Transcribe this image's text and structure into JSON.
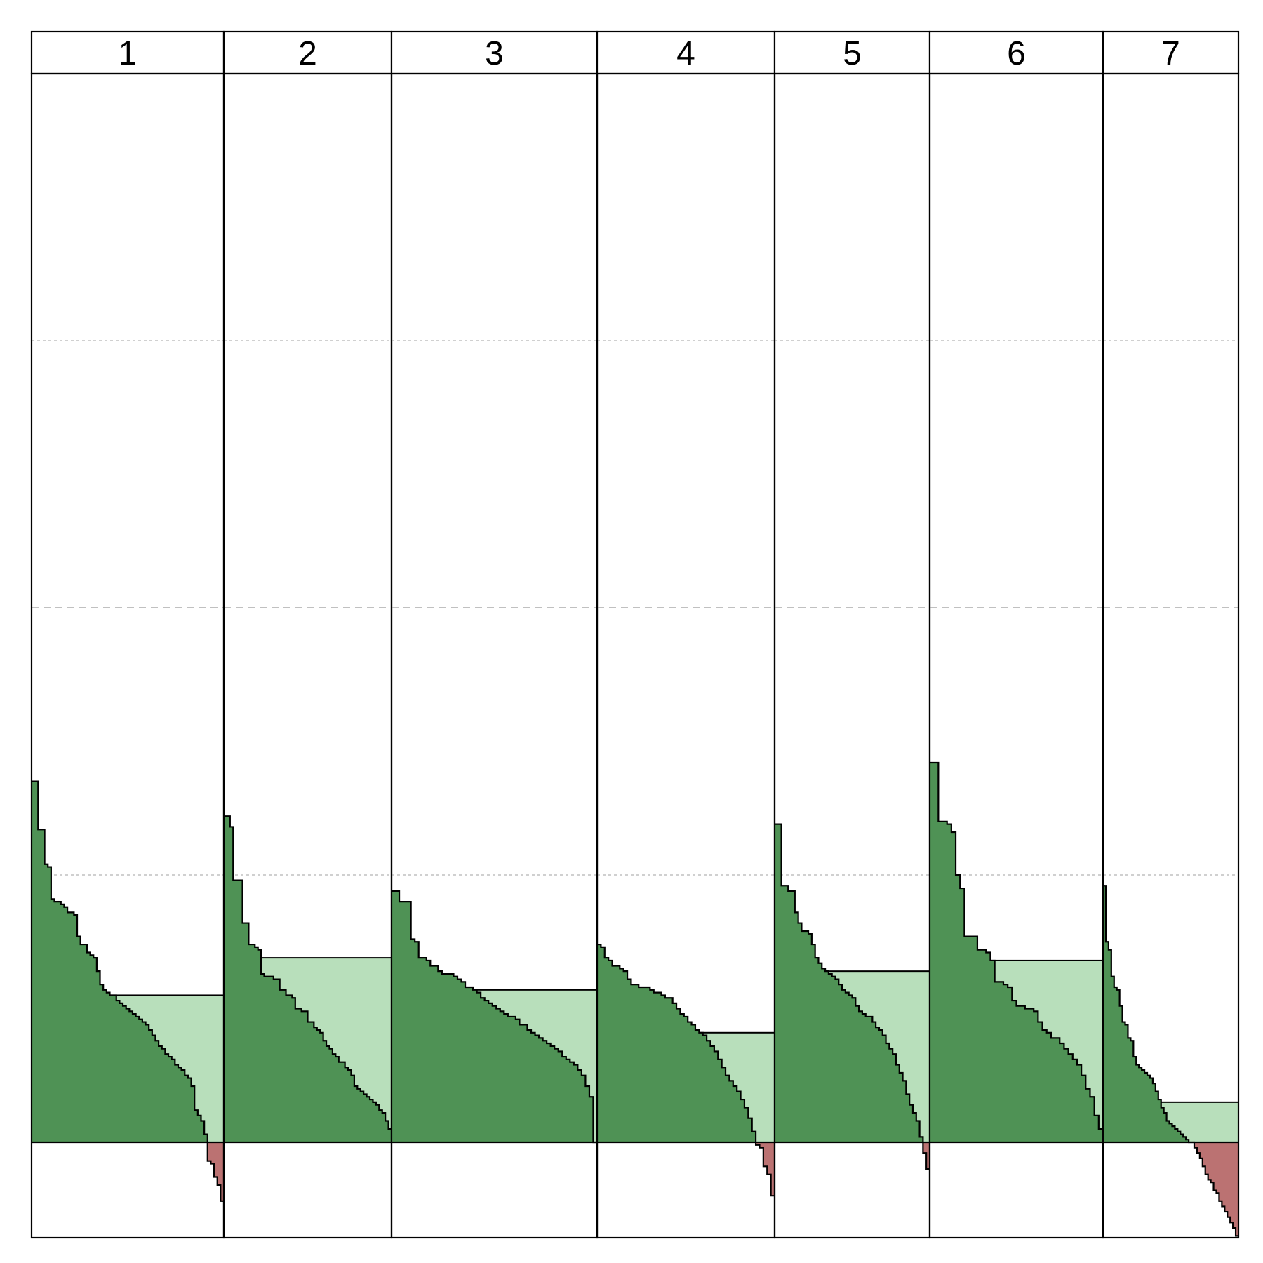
{
  "chart_data": {
    "type": "area",
    "description_free": true,
    "panels": [
      {
        "label": "1",
        "mean": 0.55,
        "values": [
          1.35,
          1.35,
          1.17,
          1.17,
          1.04,
          1.03,
          0.91,
          0.9,
          0.9,
          0.89,
          0.88,
          0.86,
          0.86,
          0.85,
          0.77,
          0.74,
          0.74,
          0.71,
          0.7,
          0.69,
          0.64,
          0.59,
          0.57,
          0.56,
          0.55,
          0.55,
          0.53,
          0.52,
          0.51,
          0.5,
          0.49,
          0.48,
          0.47,
          0.46,
          0.45,
          0.44,
          0.42,
          0.4,
          0.38,
          0.36,
          0.35,
          0.33,
          0.32,
          0.31,
          0.29,
          0.28,
          0.27,
          0.25,
          0.24,
          0.21,
          0.12,
          0.1,
          0.08,
          0.03,
          -0.07,
          -0.08,
          -0.13,
          -0.16,
          -0.22
        ]
      },
      {
        "label": "2",
        "mean": 0.69,
        "values": [
          1.22,
          1.22,
          1.18,
          0.98,
          0.98,
          0.98,
          0.82,
          0.82,
          0.74,
          0.74,
          0.73,
          0.72,
          0.63,
          0.62,
          0.62,
          0.62,
          0.61,
          0.61,
          0.57,
          0.57,
          0.55,
          0.55,
          0.54,
          0.5,
          0.5,
          0.49,
          0.49,
          0.45,
          0.45,
          0.43,
          0.42,
          0.41,
          0.38,
          0.36,
          0.35,
          0.33,
          0.32,
          0.3,
          0.3,
          0.28,
          0.27,
          0.25,
          0.21,
          0.2,
          0.19,
          0.18,
          0.17,
          0.16,
          0.15,
          0.14,
          0.12,
          0.11,
          0.08,
          0.05
        ]
      },
      {
        "label": "3",
        "mean": 0.57,
        "values": [
          0.94,
          0.94,
          0.9,
          0.9,
          0.9,
          0.76,
          0.75,
          0.69,
          0.69,
          0.68,
          0.66,
          0.66,
          0.64,
          0.63,
          0.63,
          0.63,
          0.62,
          0.61,
          0.6,
          0.58,
          0.58,
          0.57,
          0.56,
          0.54,
          0.53,
          0.52,
          0.51,
          0.5,
          0.49,
          0.48,
          0.47,
          0.47,
          0.46,
          0.44,
          0.44,
          0.42,
          0.41,
          0.4,
          0.39,
          0.38,
          0.37,
          0.36,
          0.35,
          0.34,
          0.32,
          0.31,
          0.3,
          0.29,
          0.27,
          0.25,
          0.21,
          0.17,
          0.0
        ]
      },
      {
        "label": "4",
        "mean": 0.41,
        "values": [
          0.74,
          0.73,
          0.69,
          0.68,
          0.66,
          0.66,
          0.65,
          0.64,
          0.61,
          0.59,
          0.59,
          0.58,
          0.58,
          0.58,
          0.57,
          0.56,
          0.56,
          0.55,
          0.54,
          0.54,
          0.52,
          0.5,
          0.48,
          0.47,
          0.45,
          0.44,
          0.42,
          0.41,
          0.4,
          0.38,
          0.36,
          0.34,
          0.31,
          0.28,
          0.25,
          0.23,
          0.21,
          0.19,
          0.16,
          0.13,
          0.09,
          0.04,
          -0.01,
          -0.02,
          -0.09,
          -0.12,
          -0.2
        ]
      },
      {
        "label": "5",
        "mean": 0.64,
        "values": [
          1.19,
          1.19,
          0.96,
          0.96,
          0.94,
          0.94,
          0.86,
          0.82,
          0.79,
          0.79,
          0.78,
          0.74,
          0.69,
          0.67,
          0.65,
          0.64,
          0.63,
          0.62,
          0.61,
          0.59,
          0.57,
          0.56,
          0.55,
          0.54,
          0.51,
          0.49,
          0.48,
          0.47,
          0.47,
          0.45,
          0.43,
          0.42,
          0.4,
          0.37,
          0.35,
          0.33,
          0.29,
          0.26,
          0.23,
          0.18,
          0.14,
          0.11,
          0.08,
          0.02,
          -0.04,
          -0.1
        ]
      },
      {
        "label": "6",
        "mean": 0.68,
        "values": [
          1.42,
          1.42,
          1.2,
          1.2,
          1.19,
          1.16,
          1.0,
          0.95,
          0.77,
          0.77,
          0.77,
          0.72,
          0.72,
          0.71,
          0.68,
          0.6,
          0.6,
          0.59,
          0.58,
          0.53,
          0.51,
          0.51,
          0.5,
          0.5,
          0.49,
          0.45,
          0.42,
          0.41,
          0.39,
          0.39,
          0.37,
          0.35,
          0.33,
          0.31,
          0.29,
          0.25,
          0.2,
          0.17,
          0.1,
          0.05
        ]
      },
      {
        "label": "7",
        "mean": 0.15,
        "values": [
          0.96,
          0.75,
          0.72,
          0.62,
          0.58,
          0.57,
          0.51,
          0.45,
          0.44,
          0.39,
          0.38,
          0.32,
          0.29,
          0.28,
          0.27,
          0.26,
          0.25,
          0.24,
          0.22,
          0.19,
          0.16,
          0.13,
          0.11,
          0.08,
          0.07,
          0.06,
          0.05,
          0.04,
          0.03,
          0.02,
          0.01,
          0.0,
          0.0,
          -0.02,
          -0.04,
          -0.06,
          -0.09,
          -0.12,
          -0.14,
          -0.15,
          -0.18,
          -0.19,
          -0.22,
          -0.24,
          -0.26,
          -0.28,
          -0.3,
          -0.32,
          -0.35
        ]
      }
    ],
    "ylim": [
      -0.35,
      4.15
    ],
    "gridlines": [
      1.0,
      2.0,
      3.0
    ],
    "grid": true,
    "colors": {
      "positive": "#4f9255",
      "mean_fill": "#b8dfbb",
      "negative": "#bb7272",
      "grid": "#c0c0c0",
      "frame": "#000000"
    }
  }
}
